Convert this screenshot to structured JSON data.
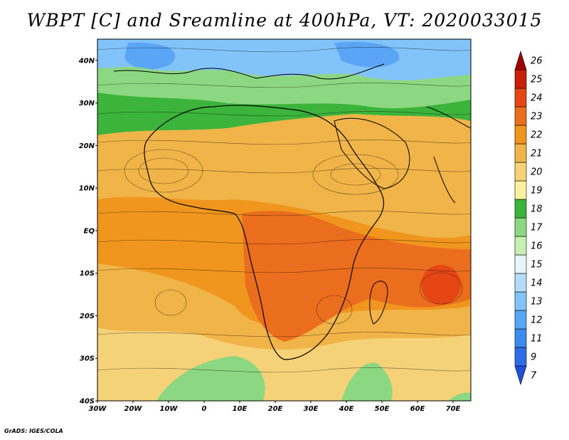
{
  "title": "WBPT [C] and Sreamline at 400hPa, VT: 2020033015",
  "credit": "GrADS: IGES/COLA",
  "map": {
    "lat_labels": [
      "40N",
      "30N",
      "20N",
      "10N",
      "EQ",
      "10S",
      "20S",
      "30S",
      "40S"
    ],
    "lon_labels": [
      "30W",
      "20W",
      "10W",
      "0",
      "10E",
      "20E",
      "30E",
      "40E",
      "50E",
      "60E",
      "70E"
    ],
    "lat_range": [
      -40,
      45
    ],
    "lon_range": [
      -30,
      75
    ]
  },
  "colorbar": {
    "labels": [
      "7",
      "9",
      "11",
      "12",
      "13",
      "14",
      "15",
      "16",
      "17",
      "18",
      "19",
      "20",
      "21",
      "22",
      "23",
      "24",
      "25",
      "26"
    ],
    "colors": [
      "#1e50dc",
      "#2d6ee6",
      "#3c8cf0",
      "#5aa5f5",
      "#82c3fa",
      "#b4dcfa",
      "#e6f5fa",
      "#c8f0b4",
      "#8cd782",
      "#3cb43c",
      "#faf0a0",
      "#f5d278",
      "#f0b448",
      "#f0961e",
      "#eb6e1e",
      "#e64614",
      "#c81e0a",
      "#a00000"
    ]
  }
}
